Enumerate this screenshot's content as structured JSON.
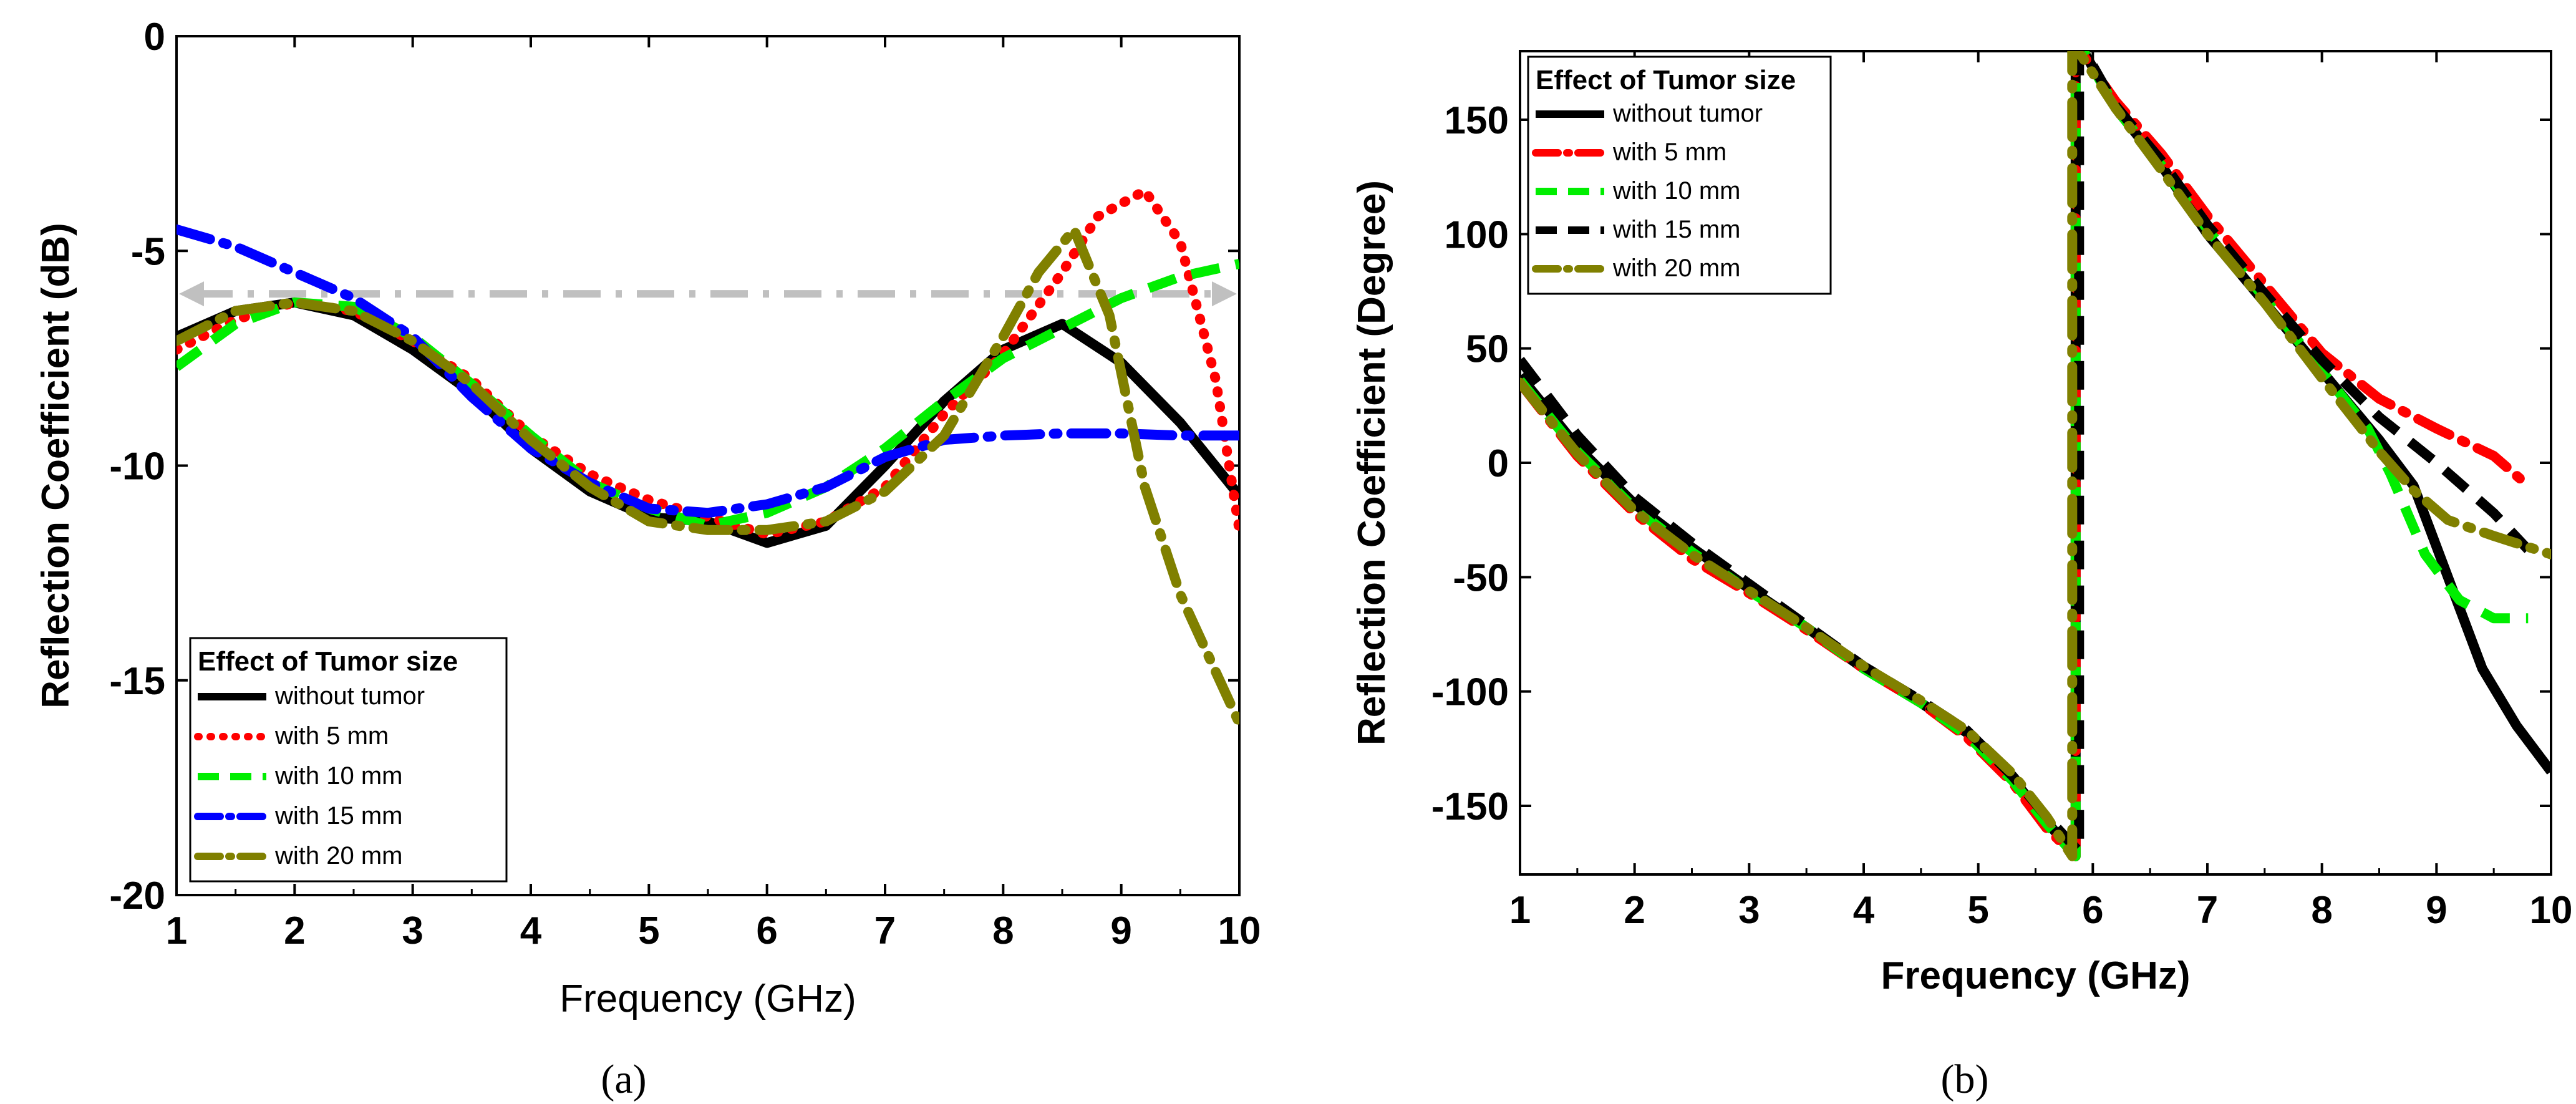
{
  "chart_data": [
    {
      "type": "line",
      "panel_label": "(a)",
      "xlabel": "Frequency (GHz)",
      "ylabel": "Reflection Coefficient (dB)",
      "xlim": [
        1,
        10
      ],
      "ylim": [
        -20,
        0
      ],
      "xticks": [
        1,
        2,
        3,
        4,
        5,
        6,
        7,
        8,
        9,
        10
      ],
      "yticks": [
        0,
        -5,
        -10,
        -15,
        -20
      ],
      "yticklabels": [
        "0",
        "-5",
        "-10",
        "-15",
        "-20"
      ],
      "grid": false,
      "legend": {
        "title": "Effect of Tumor size",
        "placement": "bottom-left"
      },
      "reference_line": {
        "y": -6,
        "style": "dash-dot double arrow",
        "color": "#c0c0c0"
      },
      "series": [
        {
          "name": "without tumor",
          "color": "#000000",
          "dash": "solid",
          "x": [
            1,
            1.5,
            2,
            2.5,
            3,
            3.5,
            4,
            4.5,
            5,
            5.5,
            6,
            6.5,
            7,
            7.5,
            8,
            8.5,
            9,
            9.5,
            10
          ],
          "y": [
            -7,
            -6.4,
            -6.2,
            -6.5,
            -7.3,
            -8.3,
            -9.6,
            -10.6,
            -11.2,
            -11.3,
            -11.8,
            -11.4,
            -10.0,
            -8.5,
            -7.3,
            -6.7,
            -7.6,
            -9.0,
            -10.7
          ]
        },
        {
          "name": "with 5 mm",
          "color": "#ff0000",
          "dash": "dot",
          "x": [
            1,
            1.5,
            2,
            2.5,
            3,
            3.5,
            4,
            4.5,
            5,
            5.5,
            6,
            6.5,
            7,
            7.5,
            8,
            8.5,
            8.8,
            9.2,
            9.5,
            9.8,
            10
          ],
          "y": [
            -7.3,
            -6.6,
            -6.2,
            -6.4,
            -7.1,
            -8.0,
            -9.3,
            -10.2,
            -10.8,
            -11.2,
            -11.6,
            -11.3,
            -10.5,
            -8.8,
            -7.4,
            -5.5,
            -4.2,
            -3.6,
            -4.8,
            -8.0,
            -11.5
          ]
        },
        {
          "name": "with 10 mm",
          "color": "#00ee00",
          "dash": "dash",
          "x": [
            1,
            1.5,
            2,
            2.5,
            3,
            3.5,
            4,
            4.5,
            5,
            5.5,
            6,
            6.5,
            7,
            7.5,
            8,
            8.5,
            9,
            9.5,
            10
          ],
          "y": [
            -7.7,
            -6.7,
            -6.2,
            -6.3,
            -7.0,
            -8.1,
            -9.3,
            -10.4,
            -11.0,
            -11.4,
            -11.1,
            -10.5,
            -9.6,
            -8.5,
            -7.5,
            -6.8,
            -6.1,
            -5.6,
            -5.3
          ]
        },
        {
          "name": "with 15 mm",
          "color": "#0000ff",
          "dash": "dash-dot",
          "x": [
            1,
            1.5,
            2,
            2.5,
            3,
            3.5,
            4,
            4.5,
            5,
            5.5,
            6,
            6.5,
            7,
            7.5,
            8,
            8.5,
            9,
            9.5,
            10
          ],
          "y": [
            -4.5,
            -4.9,
            -5.5,
            -6.1,
            -7.0,
            -8.4,
            -9.6,
            -10.4,
            -11.0,
            -11.1,
            -10.9,
            -10.5,
            -9.8,
            -9.4,
            -9.3,
            -9.25,
            -9.25,
            -9.3,
            -9.3
          ]
        },
        {
          "name": "with 20 mm",
          "color": "#808000",
          "dash": "dash-dot",
          "x": [
            1,
            1.5,
            2,
            2.5,
            3,
            3.5,
            4,
            4.5,
            5,
            5.5,
            6,
            6.5,
            7,
            7.5,
            8,
            8.3,
            8.6,
            8.9,
            9.2,
            9.5,
            9.8,
            10
          ],
          "y": [
            -7.1,
            -6.4,
            -6.2,
            -6.4,
            -7.1,
            -8.1,
            -9.4,
            -10.5,
            -11.3,
            -11.5,
            -11.5,
            -11.3,
            -10.6,
            -9.3,
            -7.0,
            -5.5,
            -4.5,
            -6.5,
            -10.5,
            -13.0,
            -14.8,
            -16.0
          ]
        }
      ]
    },
    {
      "type": "line",
      "panel_label": "(b)",
      "xlabel": "Frequency (GHz)",
      "ylabel": "Reflection Coefficient (Degree)",
      "xlim": [
        1,
        10
      ],
      "ylim": [
        -180,
        180
      ],
      "xticks": [
        1,
        2,
        3,
        4,
        5,
        6,
        7,
        8,
        9,
        10
      ],
      "yticks": [
        150,
        100,
        50,
        0,
        -50,
        -100,
        -150
      ],
      "yticklabels": [
        "150",
        "100",
        "50",
        "0",
        "-50",
        "-100",
        "-150"
      ],
      "grid": false,
      "legend": {
        "title": "Effect of Tumor size",
        "placement": "top-left"
      },
      "series": [
        {
          "name": "without tumor",
          "color": "#000000",
          "dash": "solid",
          "x": [
            1,
            1.5,
            2,
            2.5,
            3,
            3.5,
            4,
            4.5,
            4.9,
            5.3,
            5.6,
            5.85,
            5.85,
            5.92,
            6.2,
            6.6,
            7,
            7.5,
            8,
            8.5,
            8.8,
            9.1,
            9.4,
            9.7,
            10
          ],
          "y": [
            38,
            7,
            -18,
            -37,
            -55,
            -72,
            -90,
            -105,
            -118,
            -138,
            -157,
            -172,
            180,
            180,
            155,
            130,
            100,
            70,
            40,
            10,
            -10,
            -50,
            -90,
            -115,
            -135
          ]
        },
        {
          "name": "with 5 mm",
          "color": "#ff0000",
          "dash": "dash-dot",
          "x": [
            1,
            1.5,
            2,
            2.5,
            3,
            3.5,
            4,
            4.5,
            4.9,
            5.3,
            5.6,
            5.85,
            5.85,
            5.92,
            6.2,
            6.6,
            7,
            7.5,
            8,
            8.5,
            9,
            9.5,
            9.8
          ],
          "y": [
            35,
            3,
            -22,
            -42,
            -57,
            -73,
            -90,
            -105,
            -120,
            -140,
            -160,
            -172,
            180,
            178,
            158,
            135,
            108,
            78,
            48,
            28,
            15,
            3,
            -10
          ]
        },
        {
          "name": "with 10 mm",
          "color": "#00ee00",
          "dash": "dash",
          "x": [
            1,
            1.5,
            2,
            2.5,
            3,
            3.5,
            4,
            4.5,
            4.9,
            5.3,
            5.6,
            5.85,
            5.85,
            5.92,
            6.2,
            6.6,
            7,
            7.5,
            8,
            8.4,
            8.6,
            8.9,
            9.2,
            9.5,
            9.8
          ],
          "y": [
            36,
            5,
            -20,
            -39,
            -56,
            -72,
            -90,
            -105,
            -119,
            -139,
            -158,
            -172,
            180,
            180,
            155,
            130,
            102,
            72,
            40,
            15,
            -5,
            -40,
            -60,
            -68,
            -68
          ]
        },
        {
          "name": "with 15 mm",
          "color": "#000000",
          "dash": "dash",
          "x": [
            1,
            1.5,
            2,
            2.5,
            3,
            3.5,
            4,
            4.5,
            4.9,
            5.3,
            5.6,
            5.88,
            5.88,
            5.95,
            6.2,
            6.6,
            7,
            7.5,
            8,
            8.5,
            9,
            9.5,
            9.8
          ],
          "y": [
            45,
            12,
            -15,
            -35,
            -53,
            -71,
            -89,
            -104,
            -117,
            -137,
            -155,
            -170,
            180,
            178,
            156,
            132,
            104,
            74,
            45,
            20,
            0,
            -22,
            -38
          ]
        },
        {
          "name": "with 20 mm",
          "color": "#808000",
          "dash": "dash-dot",
          "x": [
            1,
            1.5,
            2,
            2.5,
            3,
            3.5,
            4,
            4.5,
            4.9,
            5.3,
            5.6,
            5.82,
            5.82,
            5.9,
            6.2,
            6.6,
            7,
            7.5,
            8,
            8.5,
            8.8,
            9.1,
            9.5,
            10
          ],
          "y": [
            35,
            4,
            -21,
            -40,
            -56,
            -72,
            -89,
            -104,
            -117,
            -136,
            -155,
            -172,
            180,
            178,
            155,
            128,
            100,
            70,
            37,
            5,
            -12,
            -25,
            -32,
            -40
          ]
        }
      ]
    }
  ]
}
